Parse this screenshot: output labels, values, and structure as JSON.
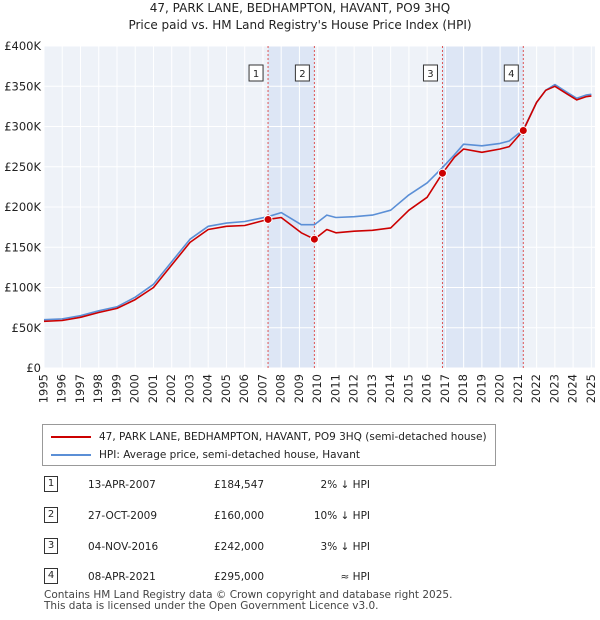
{
  "chart_data": {
    "type": "line",
    "title": "47, PARK LANE, BEDHAMPTON, HAVANT, PO9 3HQ",
    "subtitle": "Price paid vs. HM Land Registry's House Price Index (HPI)",
    "xlabel": "",
    "ylabel": "",
    "xlim": [
      1995,
      2025.2
    ],
    "ylim": [
      0,
      400000
    ],
    "x_ticks": [
      1995,
      1996,
      1997,
      1998,
      1999,
      2000,
      2001,
      2002,
      2003,
      2004,
      2005,
      2006,
      2007,
      2008,
      2009,
      2010,
      2011,
      2012,
      2013,
      2014,
      2015,
      2016,
      2017,
      2018,
      2019,
      2020,
      2021,
      2022,
      2023,
      2024,
      2025
    ],
    "y_ticks": [
      {
        "value": 0,
        "label": "£0"
      },
      {
        "value": 50000,
        "label": "£50K"
      },
      {
        "value": 100000,
        "label": "£100K"
      },
      {
        "value": 150000,
        "label": "£150K"
      },
      {
        "value": 200000,
        "label": "£200K"
      },
      {
        "value": 250000,
        "label": "£250K"
      },
      {
        "value": 300000,
        "label": "£300K"
      },
      {
        "value": 350000,
        "label": "£350K"
      },
      {
        "value": 400000,
        "label": "£400K"
      }
    ],
    "grid": true,
    "series": [
      {
        "name": "47, PARK LANE, BEDHAMPTON, HAVANT, PO9 3HQ (semi-detached house)",
        "color": "#cc0000",
        "x": [
          1995,
          1996,
          1997,
          1998,
          1999,
          2000,
          2001,
          2002,
          2003,
          2004,
          2005,
          2006,
          2007.28,
          2008,
          2009.1,
          2009.82,
          2010.5,
          2011,
          2012,
          2013,
          2014,
          2015,
          2016,
          2016.84,
          2017.5,
          2018,
          2019,
          2020,
          2020.5,
          2021.27,
          2022,
          2022.5,
          2023,
          2023.7,
          2024.2,
          2024.7,
          2025
        ],
        "y": [
          58000,
          59000,
          63000,
          69000,
          74000,
          85000,
          100000,
          128000,
          156000,
          172000,
          176000,
          177000,
          184547,
          187000,
          168000,
          160000,
          172000,
          168000,
          170000,
          171000,
          174000,
          196000,
          212000,
          242000,
          262000,
          272000,
          268000,
          272000,
          275000,
          295000,
          330000,
          345000,
          350000,
          340000,
          333000,
          337000,
          338000
        ]
      },
      {
        "name": "HPI: Average price, semi-detached house, Havant",
        "color": "#5b8fd6",
        "x": [
          1995,
          1996,
          1997,
          1998,
          1999,
          2000,
          2001,
          2002,
          2003,
          2004,
          2005,
          2006,
          2007.28,
          2008,
          2009.1,
          2009.82,
          2010.5,
          2011,
          2012,
          2013,
          2014,
          2015,
          2016,
          2016.84,
          2017.5,
          2018,
          2019,
          2020,
          2020.5,
          2021.27,
          2022,
          2022.5,
          2023,
          2023.7,
          2024.2,
          2024.7,
          2025
        ],
        "y": [
          60000,
          61000,
          65000,
          71000,
          76000,
          88000,
          104000,
          132000,
          160000,
          176000,
          180000,
          182000,
          188000,
          193000,
          178000,
          178000,
          190000,
          187000,
          188000,
          190000,
          196000,
          215000,
          230000,
          249000,
          265000,
          278000,
          276000,
          279000,
          282000,
          296000,
          330000,
          345000,
          352000,
          342000,
          335000,
          339000,
          340000
        ]
      }
    ],
    "shaded_periods": [
      [
        2007.28,
        2009.82
      ],
      [
        2016.84,
        2021.27
      ]
    ],
    "annotations": [
      {
        "label": "1",
        "x": 2007.28,
        "y": 184547
      },
      {
        "label": "2",
        "x": 2009.82,
        "y": 160000
      },
      {
        "label": "3",
        "x": 2016.84,
        "y": 242000
      },
      {
        "label": "4",
        "x": 2021.27,
        "y": 295000
      }
    ]
  },
  "transactions": [
    {
      "num": "1",
      "date": "13-APR-2007",
      "price": "£184,547",
      "hpi": "2% ↓ HPI"
    },
    {
      "num": "2",
      "date": "27-OCT-2009",
      "price": "£160,000",
      "hpi": "10% ↓ HPI"
    },
    {
      "num": "3",
      "date": "04-NOV-2016",
      "price": "£242,000",
      "hpi": "3% ↓ HPI"
    },
    {
      "num": "4",
      "date": "08-APR-2021",
      "price": "£295,000",
      "hpi": "≈ HPI"
    }
  ],
  "footer": {
    "line1": "Contains HM Land Registry data © Crown copyright and database right 2025.",
    "line2": "This data is licensed under the Open Government Licence v3.0."
  }
}
